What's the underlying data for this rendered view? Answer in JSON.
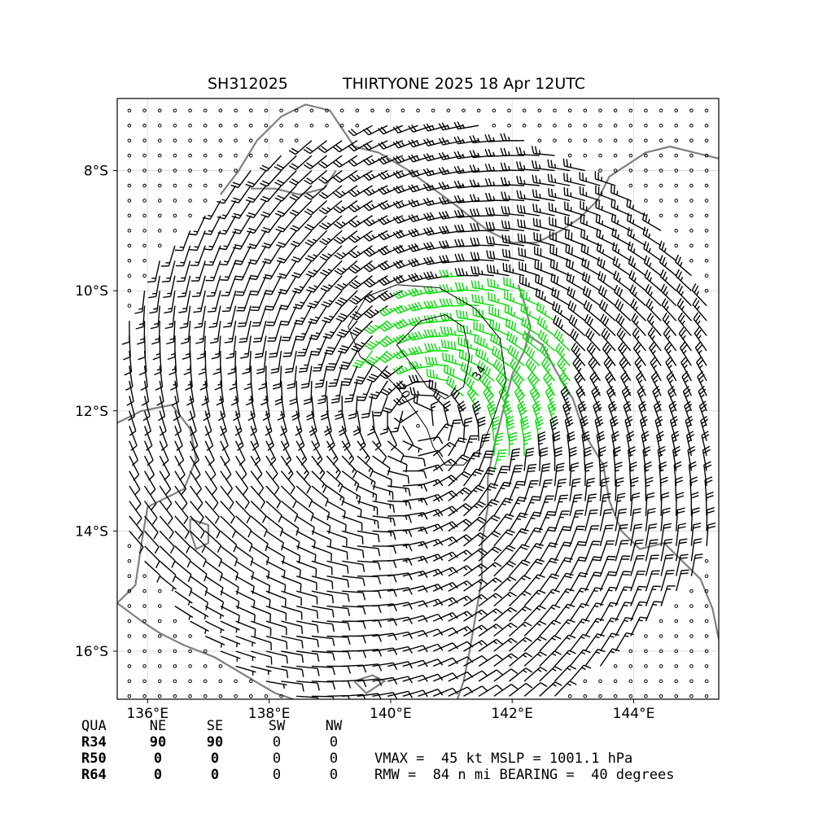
{
  "title": {
    "id": "SH312025",
    "name_time": "THIRTYONE 2025 18 Apr 12UTC"
  },
  "map": {
    "lon_ticks": [
      "136°E",
      "138°E",
      "140°E",
      "142°E",
      "144°E"
    ],
    "lat_ticks": [
      "8°S",
      "10°S",
      "12°S",
      "14°S",
      "16°S"
    ],
    "coastline_color": "#808080",
    "grid": true
  },
  "chart_data": {
    "type": "wind barb map",
    "lon_range": [
      135.5,
      145.4
    ],
    "lat_range": [
      -16.8,
      -6.8
    ],
    "center": {
      "lon": 140.5,
      "lat": -12.2
    },
    "rmw_nmi": 84,
    "vmax_kt": 45,
    "barb_colors": {
      "below_34": "#000000",
      "34_to_49": "#00dd00",
      "50_plus": "#e8a400"
    },
    "contours": [
      {
        "label": "20",
        "value": 20
      },
      {
        "label": "34",
        "value": 34
      }
    ]
  },
  "table": {
    "header": [
      "QUA",
      "NE",
      "SE",
      "SW",
      "NW"
    ],
    "rows": [
      {
        "label": "R34",
        "values": [
          "90",
          "90",
          "0",
          "0"
        ]
      },
      {
        "label": "R50",
        "values": [
          "0",
          "0",
          "0",
          "0"
        ]
      },
      {
        "label": "R64",
        "values": [
          "0",
          "0",
          "0",
          "0"
        ]
      }
    ]
  },
  "info": {
    "line1": "VMAX =  45 kt MSLP = 1001.1 hPa",
    "line2": "RMW =  84 n mi BEARING =  40 degrees"
  }
}
